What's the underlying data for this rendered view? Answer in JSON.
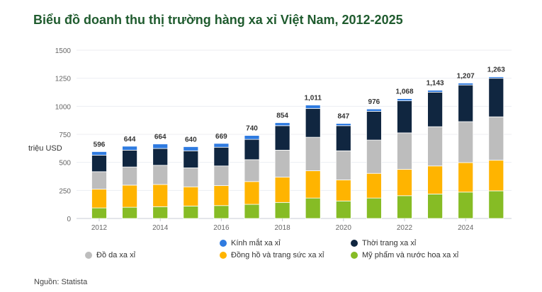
{
  "chart_data": {
    "type": "bar",
    "stacked": true,
    "title": "Biểu đồ doanh thu thị trường hàng xa xỉ Việt Nam, 2012-2025",
    "ylabel": "triệu USD",
    "xlabel": "",
    "ylim": [
      0,
      1500
    ],
    "yticks": [
      0,
      250,
      500,
      750,
      1000,
      1250,
      1500
    ],
    "grid": true,
    "legend_position": "bottom",
    "categories": [
      "2012",
      "2013",
      "2014",
      "2015",
      "2016",
      "2017",
      "2018",
      "2019",
      "2020",
      "2021",
      "2022",
      "2023",
      "2024",
      "2025"
    ],
    "xtick_labels": [
      "2012",
      "2014",
      "2016",
      "2018",
      "2020",
      "2022",
      "2024"
    ],
    "totals": [
      "596",
      "644",
      "664",
      "640",
      "669",
      "740",
      "854",
      "1,011",
      "847",
      "976",
      "1,068",
      "1,143",
      "1,207",
      "1,263"
    ],
    "series": [
      {
        "name": "Mỹ phẩm và nước hoa xa xỉ",
        "color": "#86bc25",
        "values": [
          94,
          100,
          105,
          111,
          115,
          126,
          143,
          182,
          156,
          182,
          203,
          218,
          235,
          246
        ]
      },
      {
        "name": "Đồng hồ và trang sức xa xỉ",
        "color": "#ffb400",
        "values": [
          167,
          197,
          198,
          171,
          178,
          203,
          225,
          243,
          188,
          220,
          235,
          250,
          263,
          273
        ]
      },
      {
        "name": "Đồ da xa xỉ",
        "color": "#bdbdbd",
        "values": [
          156,
          162,
          171,
          169,
          175,
          195,
          241,
          299,
          259,
          297,
          325,
          350,
          365,
          387
        ]
      },
      {
        "name": "Thời trang xa xỉ",
        "color": "#102640",
        "values": [
          147,
          150,
          150,
          152,
          167,
          181,
          218,
          257,
          224,
          256,
          286,
          308,
          327,
          344
        ]
      },
      {
        "name": "Kính mắt xa xỉ",
        "color": "#2f7be0",
        "values": [
          32,
          35,
          40,
          37,
          34,
          35,
          27,
          30,
          20,
          21,
          19,
          17,
          17,
          13
        ]
      }
    ]
  },
  "source": "Nguồn: Statista"
}
